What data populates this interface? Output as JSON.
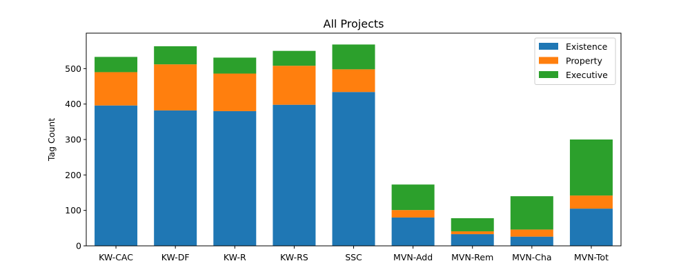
{
  "chart_data": {
    "type": "bar",
    "stacked": true,
    "title": "All Projects",
    "xlabel": "",
    "ylabel": "Tag Count",
    "ylim": [
      0,
      600
    ],
    "yticks": [
      0,
      100,
      200,
      300,
      400,
      500
    ],
    "grid": false,
    "legend_position": "top-right",
    "categories": [
      "KW-CAC",
      "KW-DF",
      "KW-R",
      "KW-RS",
      "SSC",
      "MVN-Add",
      "MVN-Rem",
      "MVN-Cha",
      "MVN-Tot"
    ],
    "series": [
      {
        "name": "Existence",
        "color": "#1f77b4",
        "values": [
          396,
          382,
          380,
          398,
          434,
          80,
          33,
          26,
          105
        ]
      },
      {
        "name": "Property",
        "color": "#ff7f0e",
        "values": [
          94,
          130,
          106,
          110,
          64,
          21,
          8,
          20,
          37
        ]
      },
      {
        "name": "Executive",
        "color": "#2ca02c",
        "values": [
          43,
          51,
          45,
          42,
          70,
          72,
          37,
          94,
          158
        ]
      }
    ]
  }
}
